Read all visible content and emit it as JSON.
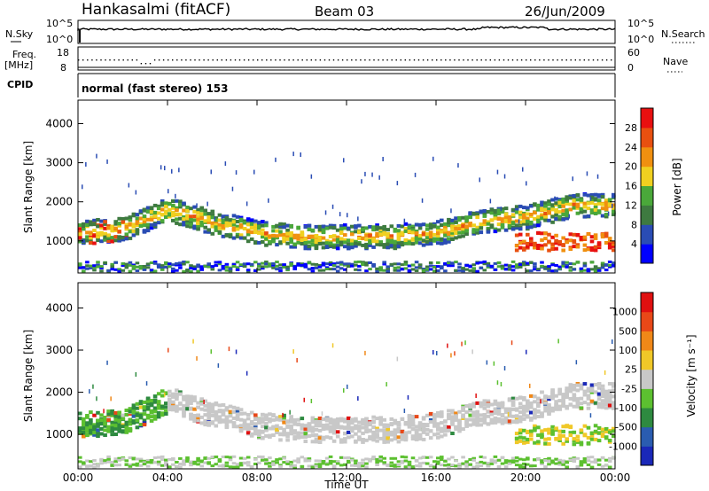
{
  "header": {
    "station": "Hankasalmi (fitACF)",
    "beam": "Beam 03",
    "date": "26/Jun/2009"
  },
  "top_panels": {
    "nsky_label": "N.Sky",
    "nsky_ticks": [
      "10^5",
      "10^0"
    ],
    "nsearch_label": "N.Search",
    "nsearch_ticks": [
      "10^5",
      "10^0"
    ],
    "freq_label_1": "Freq.",
    "freq_label_2": "[MHz]",
    "freq_ticks": [
      "18",
      "8"
    ],
    "nave_label": "Nave",
    "nave_ticks": [
      "60",
      "0"
    ],
    "cpid_label": "CPID",
    "mode_text": "normal (fast stereo) 153"
  },
  "chart_data": [
    {
      "type": "heatmap",
      "name": "power",
      "ylabel": "Slant Range [km]",
      "ylim": [
        180,
        4600
      ],
      "yticks": [
        1000,
        2000,
        3000,
        4000
      ],
      "colorbar_label": "Power [dB]",
      "colorbar_ticks": [
        "28",
        "24",
        "20",
        "16",
        "12",
        "8",
        "4"
      ],
      "colors": [
        "#0000ff",
        "#2a4cb4",
        "#3e7a40",
        "#4aa83a",
        "#f0d020",
        "#f09010",
        "#e85010",
        "#e81010"
      ],
      "x": [
        "00:00",
        "02:00",
        "04:00",
        "06:00",
        "08:00",
        "10:00",
        "12:00",
        "14:00",
        "16:00",
        "18:00",
        "20:00",
        "22:00",
        "24:00"
      ],
      "backscatter_center_km": [
        1250,
        1350,
        1850,
        1500,
        1250,
        1150,
        1150,
        1150,
        1250,
        1550,
        1650,
        1950,
        1950
      ]
    },
    {
      "type": "heatmap",
      "name": "velocity",
      "ylabel": "Slant Range [km]",
      "ylim": [
        180,
        4600
      ],
      "yticks": [
        1000,
        2000,
        3000,
        4000
      ],
      "colorbar_label": "Velocity [m s⁻¹]",
      "colorbar_ticks": [
        "1000",
        "500",
        "100",
        "25",
        "-25",
        "-100",
        "-500",
        "-1000"
      ],
      "colors": [
        "#1a28b8",
        "#2a5cb0",
        "#2e8a40",
        "#5cc030",
        "#c8c8c8",
        "#f0c828",
        "#f08818",
        "#e84818",
        "#e01010"
      ],
      "x": [
        "00:00",
        "02:00",
        "04:00",
        "06:00",
        "08:00",
        "10:00",
        "12:00",
        "14:00",
        "16:00",
        "18:00",
        "20:00",
        "22:00",
        "24:00"
      ],
      "backscatter_center_km": [
        1250,
        1350,
        1850,
        1500,
        1250,
        1150,
        1150,
        1150,
        1250,
        1550,
        1650,
        1950,
        1950
      ]
    }
  ],
  "xaxis": {
    "label": "Time UT",
    "ticks": [
      "00:00",
      "04:00",
      "08:00",
      "12:00",
      "16:00",
      "20:00",
      "00:00"
    ]
  }
}
